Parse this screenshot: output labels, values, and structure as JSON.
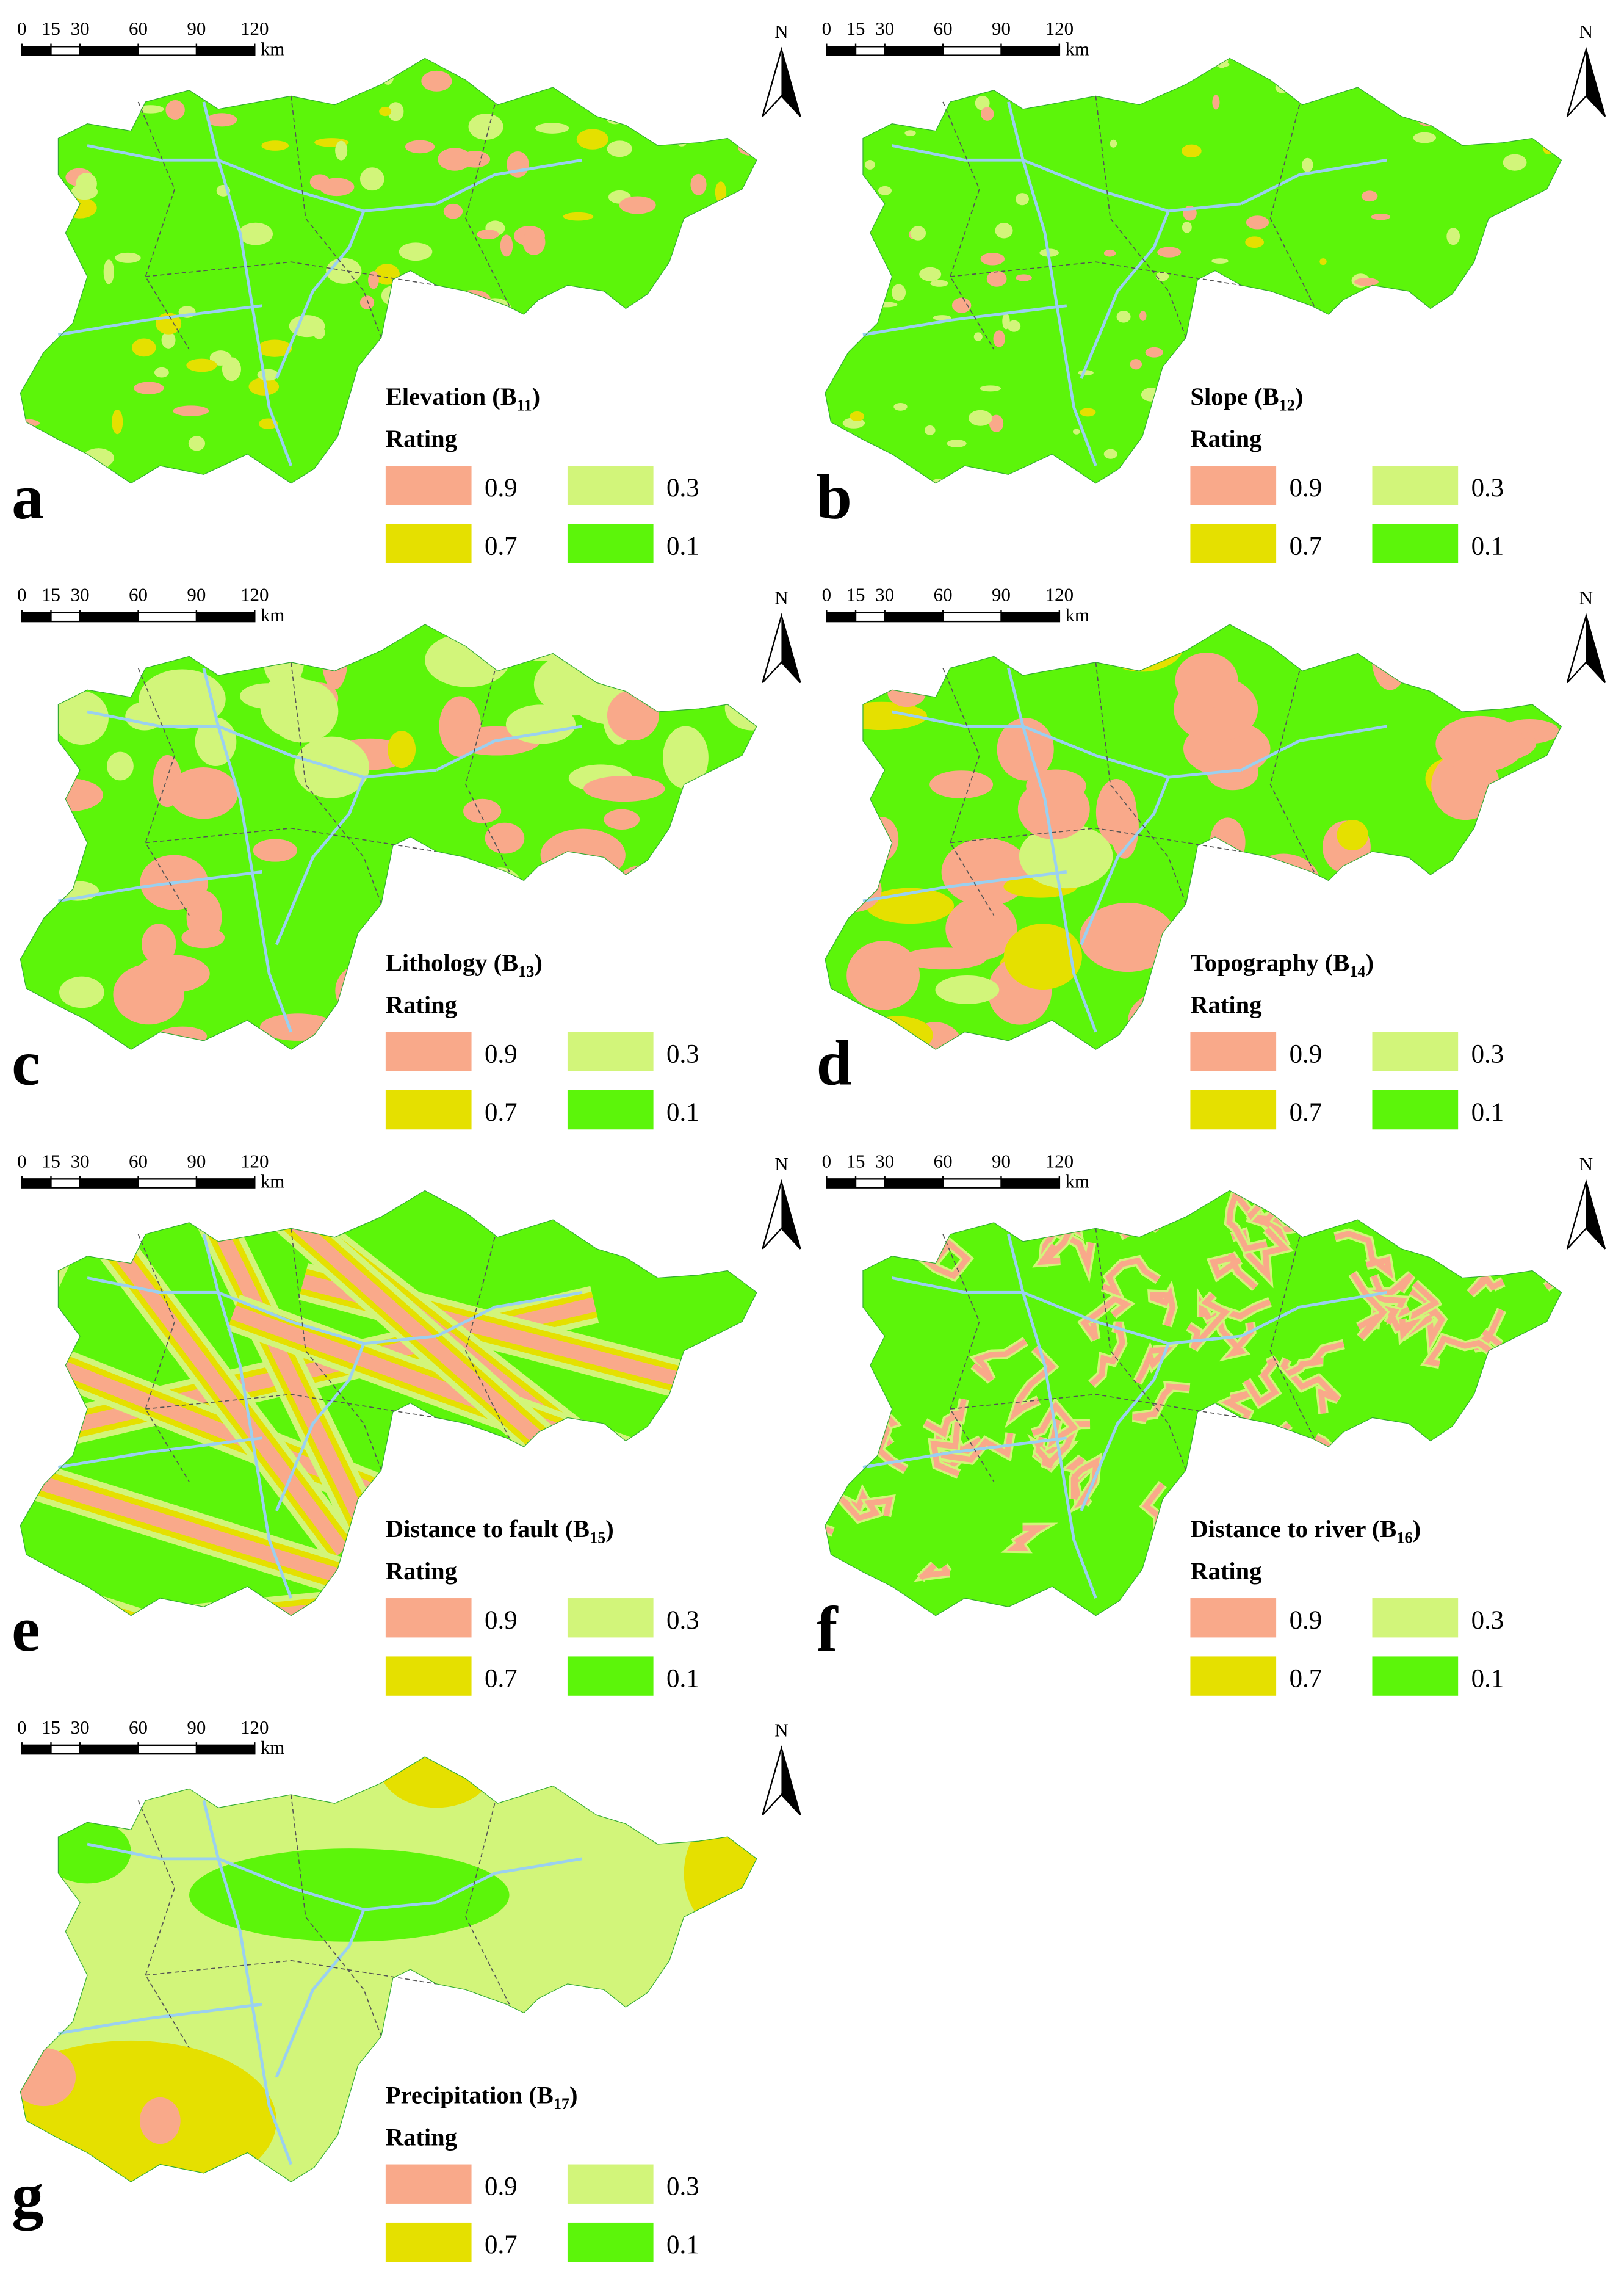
{
  "scale_bar": {
    "ticks": [
      0,
      15,
      30,
      60,
      90,
      120
    ],
    "unit": "km"
  },
  "north": "N",
  "legend_title": "Rating",
  "legend": [
    {
      "value": 0.9,
      "color": "#f9a98a"
    },
    {
      "value": 0.7,
      "color": "#e5e000"
    },
    {
      "value": 0.3,
      "color": "#d2f57a"
    },
    {
      "value": 0.1,
      "color": "#5cf50a"
    }
  ],
  "panels": [
    {
      "letter": "a",
      "title": {
        "text": "Elevation (B",
        "sub": "11",
        "end": ")"
      }
    },
    {
      "letter": "b",
      "title": {
        "text": "Slope (B",
        "sub": "12",
        "end": ")"
      }
    },
    {
      "letter": "c",
      "title": {
        "text": "Lithology (B",
        "sub": "13",
        "end": ")"
      }
    },
    {
      "letter": "d",
      "title": {
        "text": "Topography (B",
        "sub": "14",
        "end": ")"
      }
    },
    {
      "letter": "e",
      "title": {
        "text": "Distance to fault (B",
        "sub": "15",
        "end": ")"
      }
    },
    {
      "letter": "f",
      "title": {
        "text": "Distance to river (B",
        "sub": "16",
        "end": ")"
      }
    },
    {
      "letter": "g",
      "title": {
        "text": "Precipitation (B",
        "sub": "17",
        "end": ")"
      }
    }
  ]
}
